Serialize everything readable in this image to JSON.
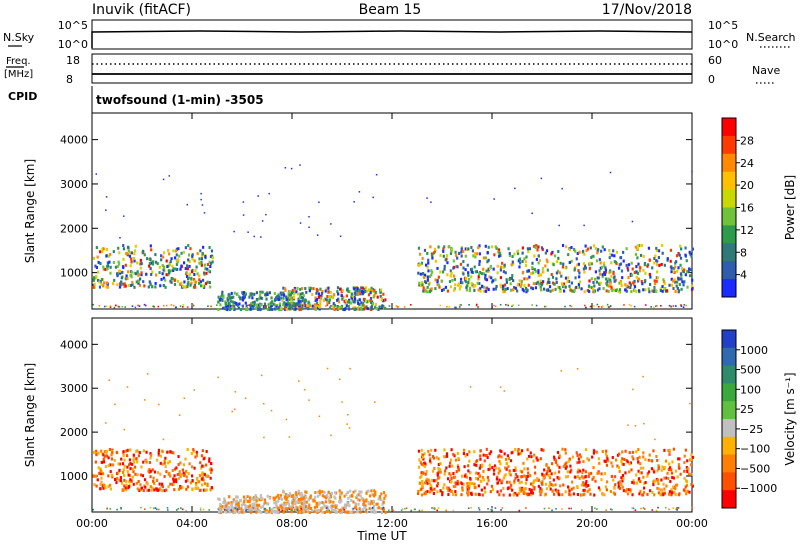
{
  "header": {
    "station": "Inuvik (fitACF)",
    "beam": "Beam 15",
    "date": "17/Nov/2018"
  },
  "summary": {
    "nsky_label": "N.Sky",
    "nsky_ticks": [
      "10^5",
      "10^0"
    ],
    "nsearch_label": "N.Search",
    "nsearch_ticks": [
      "10^5",
      "10^0"
    ],
    "freq_label": "Freq.",
    "freq_unit": "[MHz]",
    "freq_ticks": [
      "18",
      "8"
    ],
    "nave_label": "Nave",
    "nave_ticks": [
      "60",
      "0"
    ],
    "cpid_label": "CPID",
    "cpid_text": "twofsound (1-min) -3505"
  },
  "chart_data": [
    {
      "type": "heatmap",
      "title": "Power [dB]",
      "ylabel": "Slant Range [km]",
      "xlabel": "Time UT",
      "ylim": [
        180,
        4600
      ],
      "yticks": [
        1000,
        2000,
        3000,
        4000
      ],
      "xticks": [
        "00:00",
        "04:00",
        "08:00",
        "12:00",
        "16:00",
        "20:00",
        "00:00"
      ],
      "xlim_hours": [
        0,
        24
      ],
      "colorbar": {
        "label": "Power [dB]",
        "ticks": [
          "28",
          "24",
          "20",
          "16",
          "12",
          "8",
          "4"
        ],
        "colors": [
          "#ff0000",
          "#ff3b00",
          "#ff8a00",
          "#ffc000",
          "#c8d800",
          "#70c23a",
          "#2e9a4c",
          "#2f7a78",
          "#2e5db0",
          "#1a2cff"
        ]
      },
      "regions": [
        {
          "t0": 0.0,
          "t1": 4.8,
          "r0": 700,
          "r1": 1650,
          "level": "high"
        },
        {
          "t0": 5.0,
          "t1": 8.5,
          "r0": 200,
          "r1": 600,
          "level": "low"
        },
        {
          "t0": 7.5,
          "t1": 11.7,
          "r0": 200,
          "r1": 700,
          "level": "high"
        },
        {
          "t0": 13.0,
          "t1": 24.0,
          "r0": 600,
          "r1": 1650,
          "level": "high"
        }
      ]
    },
    {
      "type": "heatmap",
      "title": "Velocity [m s-1]",
      "ylabel": "Slant Range [km]",
      "xlabel": "Time UT",
      "ylim": [
        180,
        4600
      ],
      "yticks": [
        1000,
        2000,
        3000,
        4000
      ],
      "xticks": [
        "00:00",
        "04:00",
        "08:00",
        "12:00",
        "16:00",
        "20:00",
        "00:00"
      ],
      "xlim_hours": [
        0,
        24
      ],
      "colorbar": {
        "label": "Velocity [m s⁻¹]",
        "ticks": [
          "1000",
          "500",
          "100",
          "25",
          "−25",
          "−100",
          "−500",
          "−1000"
        ],
        "colors": [
          "#2040c8",
          "#2f6ab0",
          "#2f8c6a",
          "#3aa83a",
          "#60c040",
          "#c0c0c0",
          "#ffb000",
          "#ff8000",
          "#ff5000",
          "#ff0000"
        ]
      },
      "regions": [
        {
          "t0": 0.0,
          "t1": 4.8,
          "r0": 700,
          "r1": 1650,
          "level": "neg"
        },
        {
          "t0": 5.0,
          "t1": 8.5,
          "r0": 200,
          "r1": 600,
          "level": "gray"
        },
        {
          "t0": 7.5,
          "t1": 11.7,
          "r0": 200,
          "r1": 700,
          "level": "graymix"
        },
        {
          "t0": 13.0,
          "t1": 24.0,
          "r0": 600,
          "r1": 1650,
          "level": "neg"
        }
      ]
    }
  ]
}
